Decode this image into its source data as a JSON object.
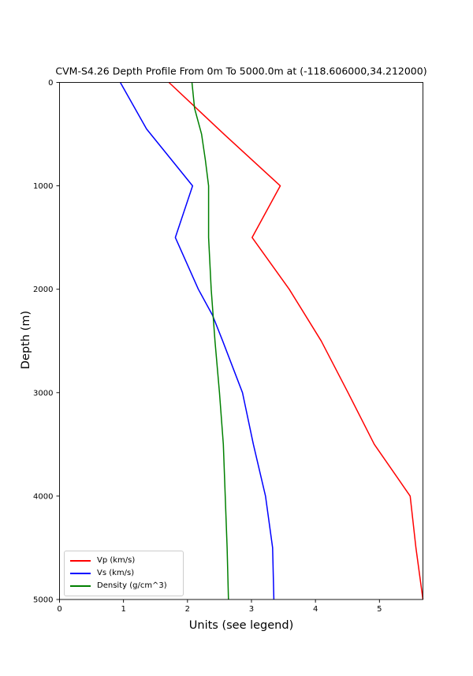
{
  "figure": {
    "title": "CVM-S4.26 Depth Profile From 0m To 5000.0m at (-118.606000,34.212000)",
    "xlabel": "Units (see legend)",
    "ylabel": "Depth (m)"
  },
  "legend": {
    "entries": [
      {
        "label": "Vp (km/s)"
      },
      {
        "label": "Vs (km/s)"
      },
      {
        "label": "Density (g/cm^3)"
      }
    ]
  },
  "chart_data": {
    "type": "line",
    "title": "CVM-S4.26 Depth Profile From 0m To 5000.0m at (-118.606000,34.212000)",
    "xlabel": "Units (see legend)",
    "ylabel": "Depth (m)",
    "xlim": [
      0,
      5.68
    ],
    "ylim": [
      0,
      5000
    ],
    "y_inverted": true,
    "grid": false,
    "legend_position": "lower left",
    "x_ticks": [
      0,
      1,
      2,
      3,
      4,
      5
    ],
    "y_ticks": [
      0,
      1000,
      2000,
      3000,
      4000,
      5000
    ],
    "point_format": "[depth_m, value]",
    "series": [
      {
        "name": "Vp (km/s)",
        "color": "#ff0000",
        "points": [
          [
            0,
            1.71
          ],
          [
            500,
            2.57
          ],
          [
            1000,
            3.45
          ],
          [
            1500,
            3.01
          ],
          [
            2000,
            3.59
          ],
          [
            2500,
            4.09
          ],
          [
            3000,
            4.51
          ],
          [
            3500,
            4.92
          ],
          [
            4000,
            5.48
          ],
          [
            4500,
            5.57
          ],
          [
            5000,
            5.68
          ]
        ]
      },
      {
        "name": "Vs (km/s)",
        "color": "#0000ff",
        "points": [
          [
            0,
            0.95
          ],
          [
            450,
            1.36
          ],
          [
            1000,
            2.08
          ],
          [
            1500,
            1.81
          ],
          [
            2000,
            2.17
          ],
          [
            2250,
            2.39
          ],
          [
            2500,
            2.55
          ],
          [
            3000,
            2.86
          ],
          [
            3500,
            3.03
          ],
          [
            4000,
            3.22
          ],
          [
            4500,
            3.33
          ],
          [
            5000,
            3.35
          ]
        ]
      },
      {
        "name": "Density (g/cm^3)",
        "color": "#008000",
        "points": [
          [
            0,
            2.07
          ],
          [
            250,
            2.11
          ],
          [
            500,
            2.22
          ],
          [
            750,
            2.28
          ],
          [
            1000,
            2.33
          ],
          [
            1500,
            2.33
          ],
          [
            2000,
            2.37
          ],
          [
            2500,
            2.43
          ],
          [
            3000,
            2.5
          ],
          [
            3500,
            2.56
          ],
          [
            4000,
            2.59
          ],
          [
            4500,
            2.62
          ],
          [
            5000,
            2.64
          ]
        ]
      }
    ]
  }
}
